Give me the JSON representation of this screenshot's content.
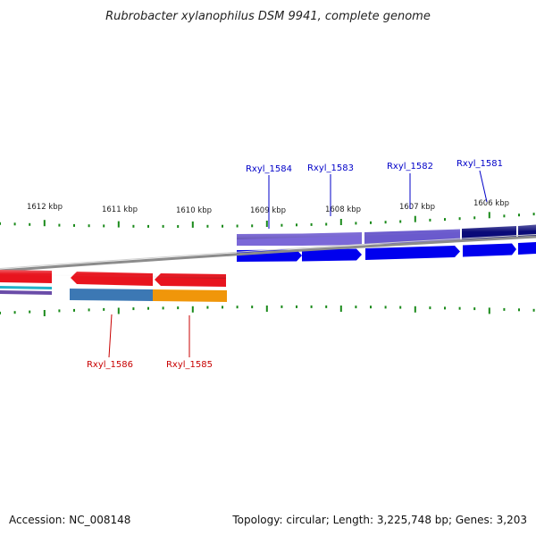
{
  "title": "Rubrobacter xylanophilus DSM 9941, complete genome",
  "footer": {
    "accession": "Accession: NC_008148",
    "summary": "Topology: circular; Length: 3,225,748 bp; Genes: 3,203"
  },
  "colors": {
    "label_top": "#0000c8",
    "label_bottom": "#c80000",
    "tick": "#1a8a1a",
    "backbone": "#8c8c8c"
  },
  "scale": {
    "unit": "kbp",
    "ticks": [
      {
        "label": "1612 kbp"
      },
      {
        "label": "1611 kbp"
      },
      {
        "label": "1610 kbp"
      },
      {
        "label": "1609 kbp"
      },
      {
        "label": "1608 kbp"
      },
      {
        "label": "1607 kbp"
      },
      {
        "label": "1606 kbp"
      }
    ]
  },
  "genes_top": [
    {
      "label": "Rxyl_1584",
      "color": "#7b68d8"
    },
    {
      "label": "Rxyl_1583",
      "color": "#7b68d8"
    },
    {
      "label": "Rxyl_1582",
      "color": "#6a5acd"
    },
    {
      "label": "Rxyl_1581",
      "color": "#0a0a78"
    }
  ],
  "genes_bottom": [
    {
      "label": "Rxyl_1586",
      "color": "#e8141e"
    },
    {
      "label": "Rxyl_1585",
      "color": "#e8141e"
    }
  ],
  "cog_top_color": "#0000ee",
  "cog_bottom": [
    {
      "color": "#3c78b4"
    },
    {
      "color": "#f0960a"
    }
  ]
}
